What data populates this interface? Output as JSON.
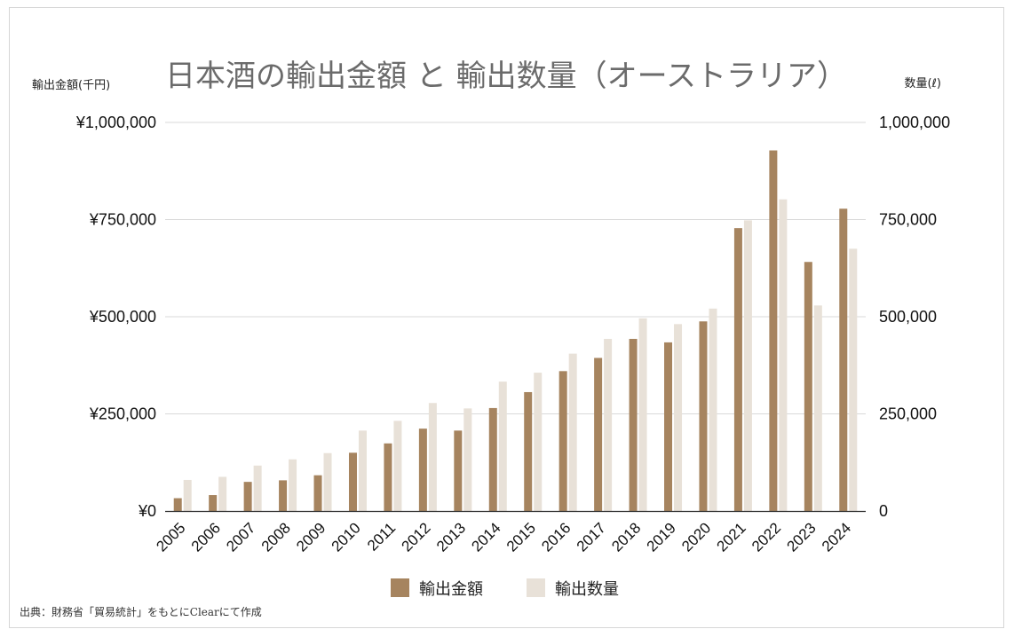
{
  "chart_data": {
    "type": "bar",
    "title": "日本酒の輸出金額 と 輸出数量（オーストラリア）",
    "ylabel_left": "輸出金額(千円)",
    "ylabel_right": "数量(ℓ)",
    "categories": [
      "2005",
      "2006",
      "2007",
      "2008",
      "2009",
      "2010",
      "2011",
      "2012",
      "2013",
      "2014",
      "2015",
      "2016",
      "2017",
      "2018",
      "2019",
      "2020",
      "2021",
      "2022",
      "2023",
      "2024"
    ],
    "series": [
      {
        "name": "輸出金額",
        "axis": "left",
        "color": "#a6845f",
        "values": [
          33000,
          41000,
          75000,
          79000,
          92000,
          150000,
          174000,
          212000,
          207000,
          265000,
          306000,
          360000,
          394000,
          443000,
          434000,
          488000,
          728000,
          928000,
          641000,
          778000
        ]
      },
      {
        "name": "輸出数量",
        "axis": "right",
        "color": "#e8e1d8",
        "values": [
          80000,
          88000,
          117000,
          133000,
          149000,
          207000,
          232000,
          278000,
          264000,
          333000,
          356000,
          405000,
          443000,
          496000,
          481000,
          521000,
          748000,
          802000,
          529000,
          675000
        ]
      }
    ],
    "ylim_left": [
      0,
      1000000
    ],
    "ylim_right": [
      0,
      1000000
    ],
    "yticks_left": [
      "¥0",
      "¥250,000",
      "¥500,000",
      "¥750,000",
      "¥1,000,000"
    ],
    "yticks_right": [
      "0",
      "250,000",
      "500,000",
      "750,000",
      "1,000,000"
    ],
    "grid": true,
    "legend_position": "bottom"
  },
  "source_note": "出典：財務省「貿易統計」をもとにClearにて作成"
}
